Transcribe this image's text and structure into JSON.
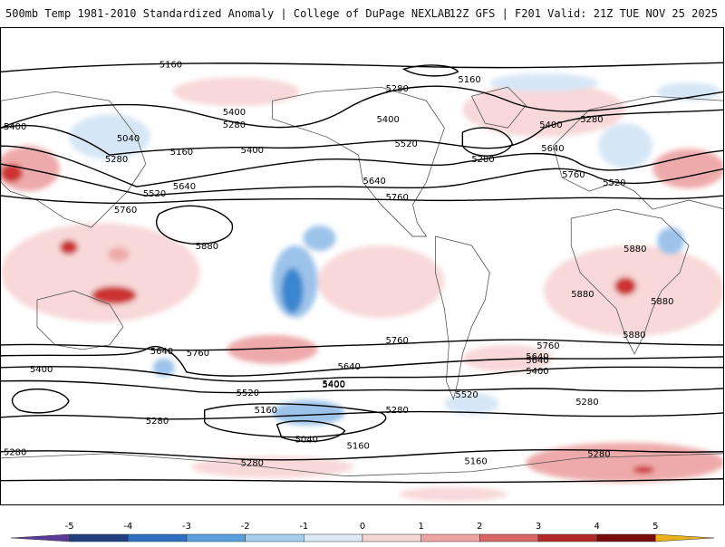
{
  "header": {
    "title_left": "500mb Temp 1981-2010 Standardized Anomaly | College of DuPage NEXLAB",
    "title_right": "12Z GFS | F201 Valid: 21Z TUE NOV 25 2025"
  },
  "contour_labels": [
    "5160",
    "5160",
    "5280",
    "5280",
    "5280",
    "5400",
    "5400",
    "5400",
    "5400",
    "5400",
    "5040",
    "5160",
    "5280",
    "5520",
    "5640",
    "5520",
    "5640",
    "5760",
    "5640",
    "5760",
    "5760",
    "5880",
    "5880",
    "5880",
    "5880",
    "5880",
    "5520",
    "5280",
    "5640",
    "5760",
    "5760",
    "5640",
    "5400",
    "5400",
    "5640",
    "5520",
    "5400",
    "5520",
    "5760",
    "5640",
    "5400",
    "5280",
    "5280",
    "5160",
    "5040",
    "5160",
    "5160",
    "5280",
    "5280",
    "5280",
    "5280"
  ],
  "colorbar": {
    "ticks": [
      "-5",
      "-4",
      "-3",
      "-2",
      "-1",
      "0",
      "1",
      "2",
      "3",
      "4",
      "5"
    ],
    "colors": [
      "#5a3b9c",
      "#1f3f7f",
      "#2f6fbf",
      "#5aa0dd",
      "#a6cdee",
      "#dde9f6",
      "#f7d6d6",
      "#eda3a3",
      "#d96565",
      "#b52828",
      "#7a0b0b",
      "#e9b21b"
    ]
  },
  "colors": {
    "warm_light": "#f8d8d8",
    "warm_mid": "#eeaaaa",
    "warm_strong": "#cc3333",
    "cold_light": "#d6e6f6",
    "cold_mid": "#9cc3ea",
    "cold_strong": "#3a86d0"
  }
}
